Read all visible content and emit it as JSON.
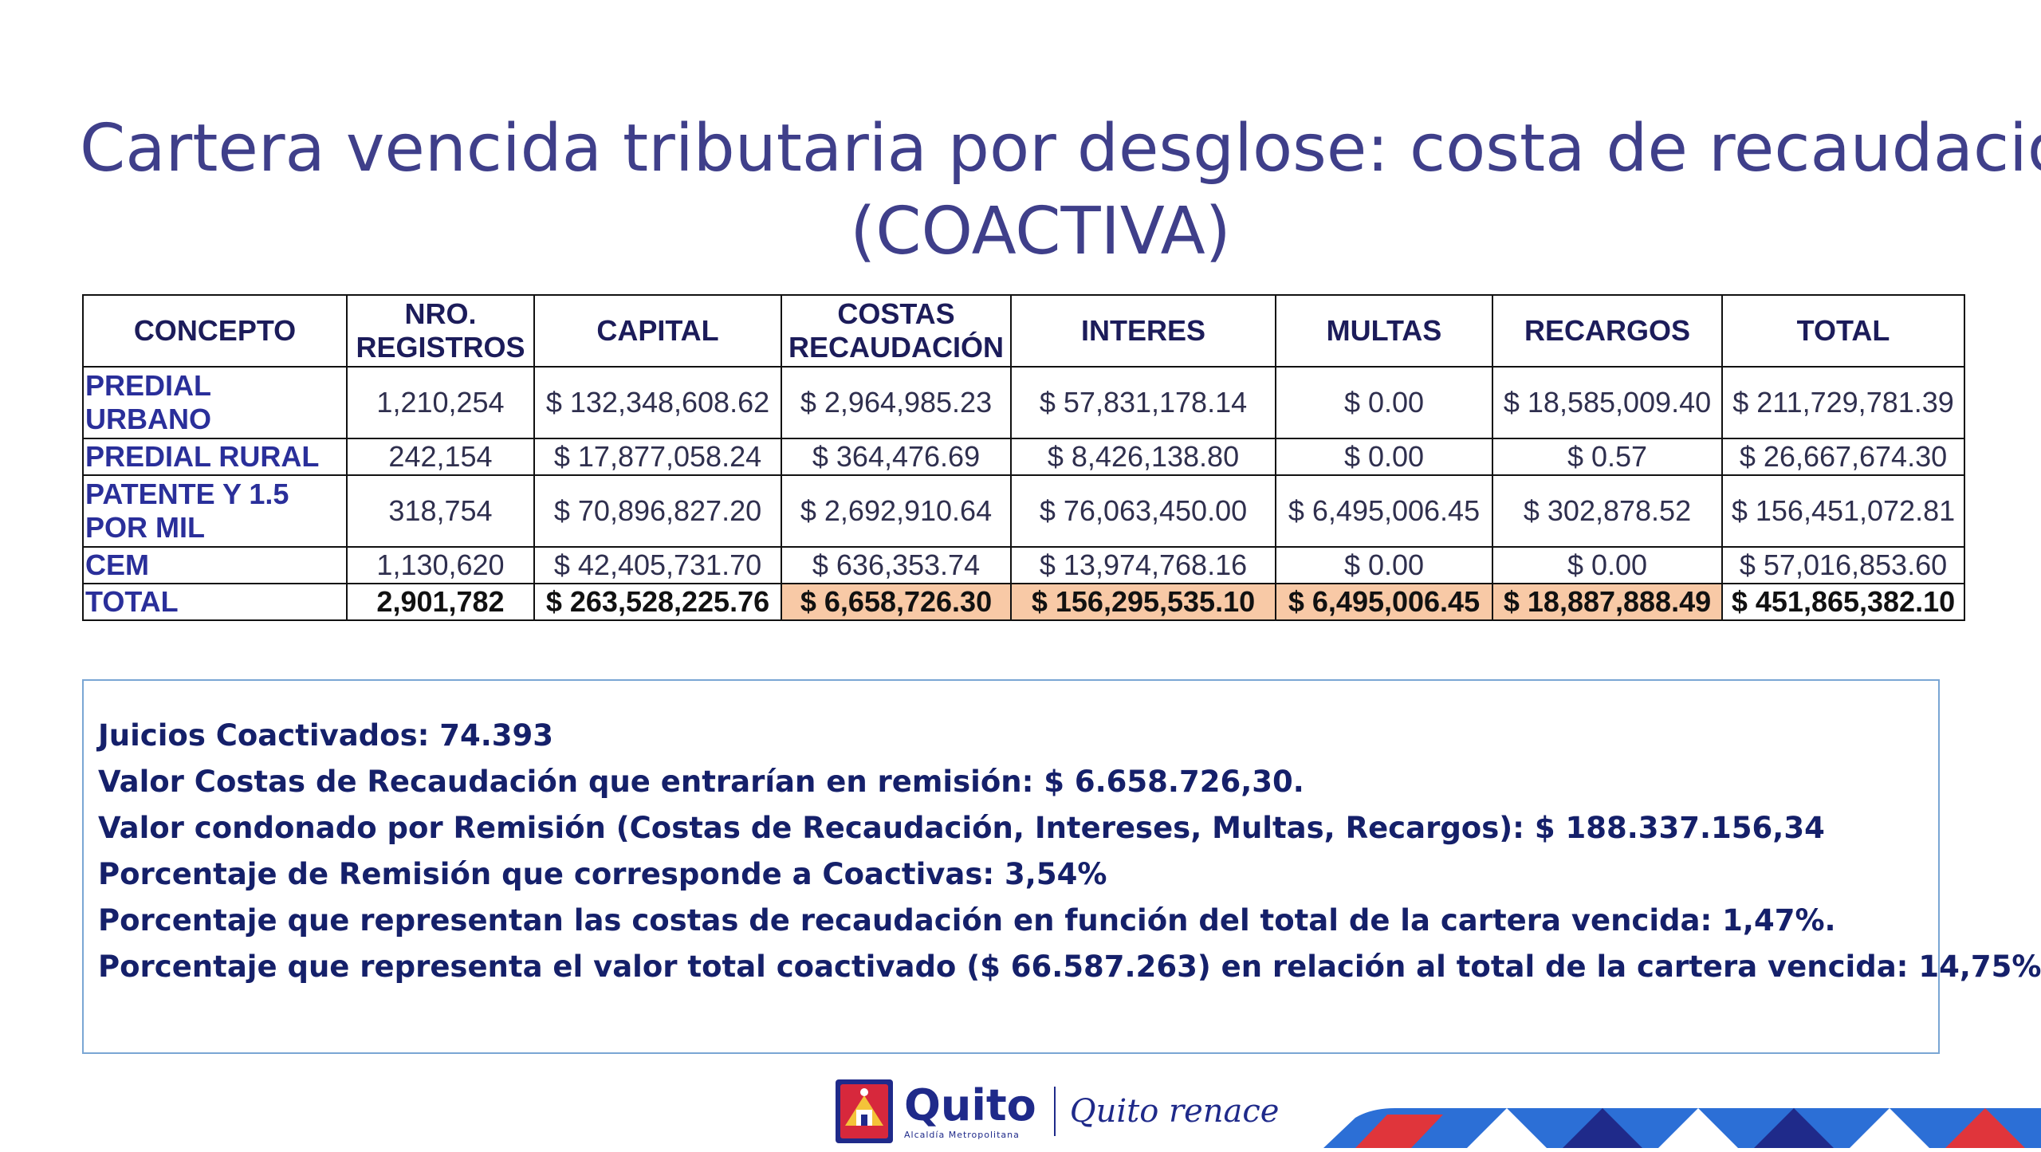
{
  "title": {
    "line1": "Cartera vencida tributaria por desglose: costa de recaudación",
    "line2": "(COACTIVA)"
  },
  "table": {
    "headers": [
      "CONCEPTO",
      "NRO. REGISTROS",
      "CAPITAL",
      "COSTAS RECAUDACIÓN",
      "INTERES",
      "MULTAS",
      "RECARGOS",
      "TOTAL"
    ],
    "rows": [
      {
        "concepto": "PREDIAL URBANO",
        "registros": "1,210,254",
        "capital": "$ 132,348,608.62",
        "costas": "$ 2,964,985.23",
        "interes": "$ 57,831,178.14",
        "multas": "$ 0.00",
        "recargos": "$ 18,585,009.40",
        "total": "$ 211,729,781.39"
      },
      {
        "concepto": "PREDIAL RURAL",
        "registros": "242,154",
        "capital": "$ 17,877,058.24",
        "costas": "$ 364,476.69",
        "interes": "$ 8,426,138.80",
        "multas": "$ 0.00",
        "recargos": "$ 0.57",
        "total": "$ 26,667,674.30"
      },
      {
        "concepto": "PATENTE Y 1.5 POR MIL",
        "registros": "318,754",
        "capital": "$ 70,896,827.20",
        "costas": "$ 2,692,910.64",
        "interes": "$ 76,063,450.00",
        "multas": "$ 6,495,006.45",
        "recargos": "$ 302,878.52",
        "total": "$ 156,451,072.81"
      },
      {
        "concepto": "CEM",
        "registros": "1,130,620",
        "capital": "$ 42,405,731.70",
        "costas": "$ 636,353.74",
        "interes": "$ 13,974,768.16",
        "multas": "$ 0.00",
        "recargos": "$ 0.00",
        "total": "$ 57,016,853.60"
      }
    ],
    "total": {
      "concepto": "TOTAL",
      "registros": "2,901,782",
      "capital": "$ 263,528,225.76",
      "costas": "$ 6,658,726.30",
      "interes": "$ 156,295,535.10",
      "multas": "$ 6,495,006.45",
      "recargos": "$ 18,887,888.49",
      "total": "$ 451,865,382.10"
    },
    "highlight_color": "#f8c9a6"
  },
  "notes": [
    "Juicios Coactivados: 74.393",
    "Valor Costas de Recaudación que entrarían en remisión: $ 6.658.726,30.",
    "Valor condonado por  Remisión (Costas de Recaudación, Intereses, Multas, Recargos): $ 188.337.156,34",
    "Porcentaje de Remisión que corresponde a Coactivas: 3,54%",
    "Porcentaje que representan las costas de recaudación en función del total de la cartera vencida: 1,47%.",
    "Porcentaje que representa el valor total coactivado ($ 66.587.263) en relación al total de la cartera vencida: 14,75%"
  ],
  "footer": {
    "brand": "Quito",
    "brand_sub": "Alcaldía Metropolitana",
    "slogan": "Quito renace",
    "crest_icon": "quito-crest-icon",
    "colors": {
      "brand": "#1f2a8a",
      "title": "#3f3f8a"
    }
  }
}
